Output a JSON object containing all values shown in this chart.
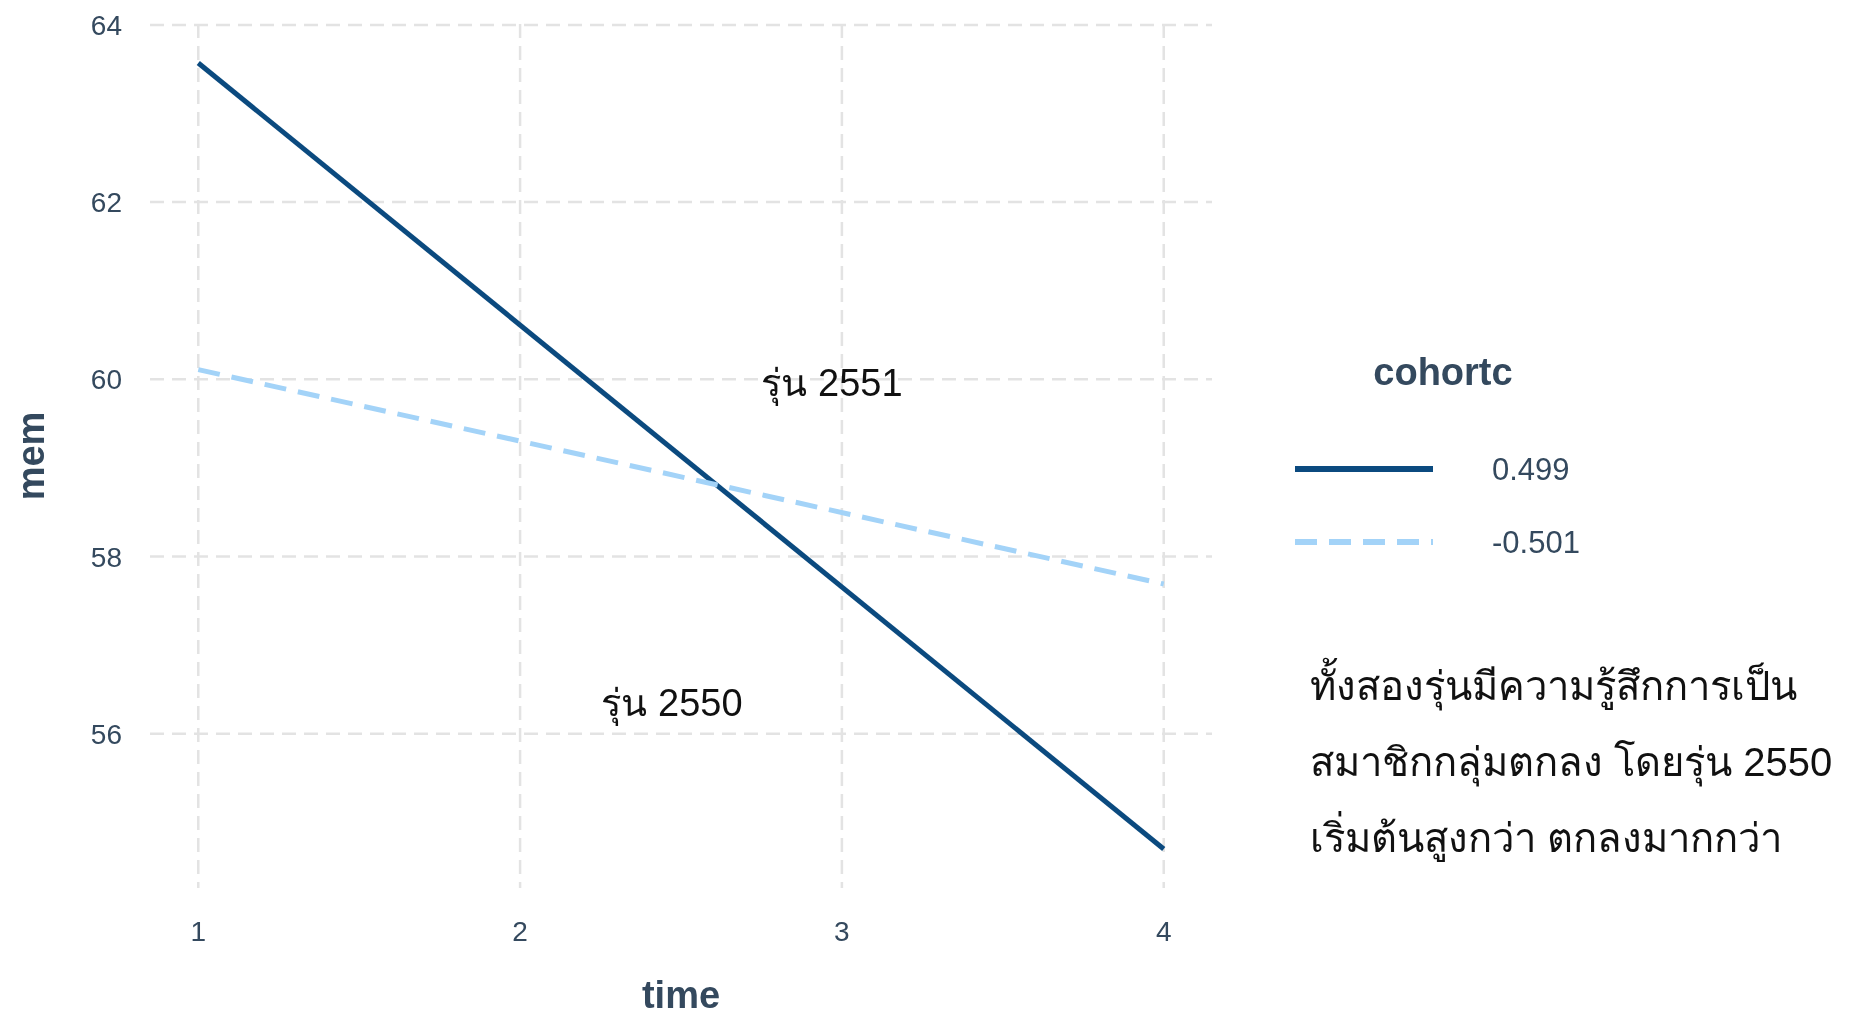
{
  "chart_data": {
    "type": "line",
    "xlabel": "time",
    "ylabel": "mem",
    "legend_title": "cohortc",
    "x": [
      1,
      4
    ],
    "series": [
      {
        "name": "0.499",
        "color": "#0b4a7f",
        "values": [
          63.57,
          54.7
        ],
        "line_style": "solid"
      },
      {
        "name": "-0.501",
        "color": "#a3d3f8",
        "values": [
          60.11,
          57.69
        ],
        "line_style": "dashed"
      }
    ],
    "xlim": [
      0.85,
      4.15
    ],
    "xticks": [
      1,
      2,
      3,
      4
    ],
    "ylim": [
      54.26,
      64.01
    ],
    "yticks": [
      56,
      58,
      60,
      62,
      64
    ],
    "grid": true,
    "legend": "right",
    "annotations": [
      "รุ่น 2551",
      "รุ่น 2550",
      "ทั้งสองรุ่นมีความรู้สึกการเป็น\nสมาชิกกลุ่มตกลง โดยรุ่น 2550\nเริ่มต้นสูงกว่า ตกลงมากกว่า"
    ]
  }
}
